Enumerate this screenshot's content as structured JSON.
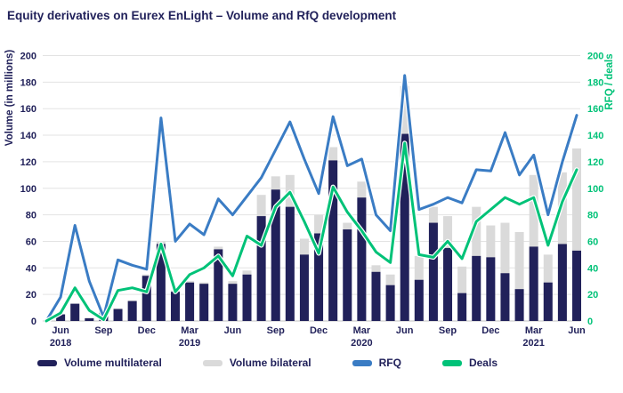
{
  "title": "Equity derivatives on Eurex EnLight – Volume and RfQ development",
  "colors": {
    "navy": "#21215a",
    "gray_bar": "#dadada",
    "blue_line": "#3a7cc4",
    "green_line": "#00c278",
    "gridline": "#e3e3e3",
    "axis_line": "#c2c2c2",
    "background": "#ffffff"
  },
  "legend": [
    {
      "label": "Volume multilateral",
      "color": "#21215a"
    },
    {
      "label": "Volume bilateral",
      "color": "#dadada"
    },
    {
      "label": "RFQ",
      "color": "#3a7cc4"
    },
    {
      "label": "Deals",
      "color": "#00c278"
    }
  ],
  "chart_data": {
    "type": "bar",
    "subtype": "stacked-bars-with-lines",
    "title": "Equity derivatives on Eurex EnLight – Volume and RfQ development",
    "xlabel": "",
    "ylabel": "Volume (in millions)",
    "y2label": "RFQ / deals",
    "ylim": [
      0,
      200
    ],
    "y2lim": [
      0,
      200
    ],
    "ytick_step": 20,
    "yticks": [
      0,
      20,
      40,
      60,
      80,
      100,
      120,
      140,
      160,
      180,
      200
    ],
    "grid": true,
    "legend_position": "bottom",
    "categories": [
      "May 2018",
      "Jun 2018",
      "Jul 2018",
      "Aug 2018",
      "Sep 2018",
      "Oct 2018",
      "Nov 2018",
      "Dec 2018",
      "Jan 2019",
      "Feb 2019",
      "Mar 2019",
      "Apr 2019",
      "May 2019",
      "Jun 2019",
      "Jul 2019",
      "Aug 2019",
      "Sep 2019",
      "Oct 2019",
      "Nov 2019",
      "Dec 2019",
      "Jan 2020",
      "Feb 2020",
      "Mar 2020",
      "Apr 2020",
      "May 2020",
      "Jun 2020",
      "Jul 2020",
      "Aug 2020",
      "Sep 2020",
      "Oct 2020",
      "Nov 2020",
      "Dec 2020",
      "Jan 2021",
      "Feb 2021",
      "Mar 2021",
      "Apr 2021",
      "May 2021",
      "Jun 2021"
    ],
    "x_ticks": [
      {
        "index": 1,
        "label": "Jun",
        "year": "2018"
      },
      {
        "index": 4,
        "label": "Sep"
      },
      {
        "index": 7,
        "label": "Dec"
      },
      {
        "index": 10,
        "label": "Mar",
        "year": "2019"
      },
      {
        "index": 13,
        "label": "Jun"
      },
      {
        "index": 16,
        "label": "Sep"
      },
      {
        "index": 19,
        "label": "Dec"
      },
      {
        "index": 22,
        "label": "Mar",
        "year": "2020"
      },
      {
        "index": 25,
        "label": "Jun"
      },
      {
        "index": 28,
        "label": "Sep"
      },
      {
        "index": 31,
        "label": "Dec"
      },
      {
        "index": 34,
        "label": "Mar",
        "year": "2021"
      },
      {
        "index": 37,
        "label": "Jun"
      }
    ],
    "series": [
      {
        "name": "Volume multilateral",
        "kind": "stacked-bar",
        "axis": "left",
        "color": "#21215a",
        "values": [
          0,
          5,
          13,
          2,
          9,
          9,
          15,
          34,
          58,
          22,
          29,
          28,
          54,
          28,
          35,
          79,
          99,
          86,
          50,
          66,
          121,
          69,
          93,
          37,
          27,
          141,
          31,
          74,
          55,
          21,
          49,
          48,
          36,
          24,
          56,
          29,
          58,
          53
        ]
      },
      {
        "name": "Volume bilateral",
        "kind": "stacked-bar",
        "axis": "left",
        "color": "#dadada",
        "values": [
          0,
          0,
          0,
          0.5,
          0,
          0.5,
          0.5,
          1,
          2,
          1,
          1,
          1,
          2,
          2,
          3,
          16,
          10,
          24,
          12,
          14,
          10,
          5,
          12,
          5,
          8,
          36,
          18,
          12,
          24,
          20,
          37,
          24,
          38,
          43,
          54,
          21,
          54,
          77
        ]
      },
      {
        "name": "RFQ",
        "kind": "line",
        "axis": "right",
        "color": "#3a7cc4",
        "values": [
          0,
          18,
          72,
          30,
          3,
          46,
          42,
          39,
          153,
          60,
          73,
          65,
          92,
          80,
          94,
          108,
          129,
          150,
          122,
          96,
          154,
          117,
          122,
          80,
          68,
          185,
          84,
          88,
          93,
          89,
          114,
          113,
          142,
          110,
          125,
          80,
          120,
          155
        ]
      },
      {
        "name": "Deals",
        "kind": "line",
        "axis": "right",
        "color": "#00c278",
        "values": [
          0,
          6,
          25,
          8,
          1,
          23,
          25,
          22,
          58,
          22,
          35,
          40,
          49,
          34,
          64,
          57,
          86,
          97,
          75,
          51,
          101,
          82,
          68,
          52,
          44,
          134,
          50,
          48,
          60,
          47,
          75,
          84,
          93,
          88,
          93,
          57,
          90,
          114
        ]
      }
    ]
  }
}
